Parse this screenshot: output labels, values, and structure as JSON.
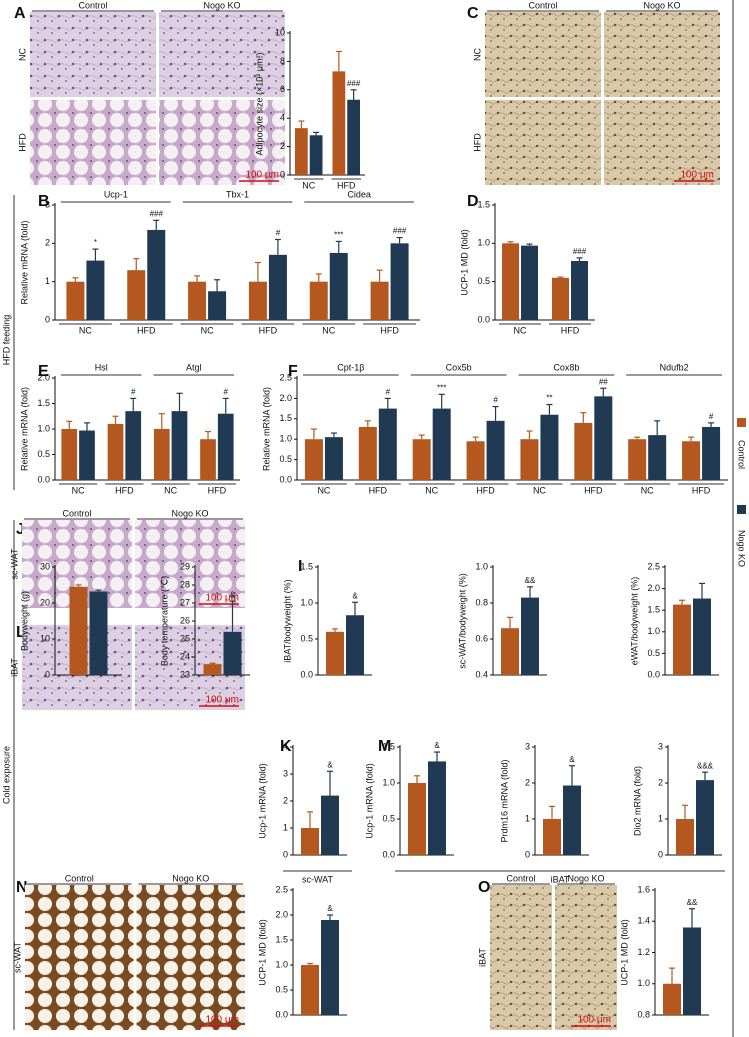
{
  "letters": [
    "A",
    "B",
    "C",
    "D",
    "E",
    "F",
    "G",
    "H",
    "I",
    "J",
    "K",
    "L",
    "M",
    "N",
    "O"
  ],
  "sections": [
    "HFD feeding",
    "Cold exposure"
  ],
  "images": [
    {
      "columns": [
        "Control",
        "Nogo KO"
      ],
      "rows": [
        "NC",
        "HFD"
      ],
      "scale": "100 μm"
    },
    {
      "columns": [
        "Control",
        "Nogo KO"
      ],
      "rows": [
        "NC",
        "HFD"
      ],
      "scale": "100 μm"
    },
    {
      "columns": [
        "Control",
        "Nogo KO"
      ],
      "rows": [
        "sc-WAT"
      ],
      "scale": "100 μm"
    },
    {
      "rows": [
        "iBAT"
      ],
      "scale": "100 μm"
    },
    {
      "columns": [
        "Control",
        "Nogo KO"
      ],
      "rows": [
        "sc-WAT"
      ],
      "scale": "100 μm"
    },
    {
      "columns": [
        "Control",
        "Nogo KO"
      ],
      "rows": [
        "iBAT"
      ],
      "scale": "100 μm"
    }
  ],
  "chart_data": [
    {
      "type": "bar",
      "ylabel": "Adipocyte size (×10² μm²)",
      "categories": [
        "NC",
        "HFD"
      ],
      "ylim": [
        0,
        10
      ],
      "yticks": [
        0,
        2,
        4,
        6,
        8,
        10
      ],
      "series": [
        {
          "name": "Control",
          "color": "#b5581f",
          "values": [
            3.3,
            7.3
          ],
          "errors": [
            0.5,
            1.4
          ]
        },
        {
          "name": "Nogo KO",
          "color": "#1f3a52",
          "values": [
            2.8,
            5.3
          ],
          "errors": [
            0.2,
            0.7
          ],
          "annotations": [
            null,
            "###"
          ]
        }
      ]
    },
    {
      "type": "bar",
      "ylabel": "Relative mRNA (fold)",
      "groups": [
        "Ucp-1",
        "Tbx-1",
        "Cidea"
      ],
      "categories": [
        "NC",
        "HFD",
        "NC",
        "HFD",
        "NC",
        "HFD"
      ],
      "ylim": [
        0,
        3
      ],
      "yticks": [
        0,
        1,
        2,
        3
      ],
      "series": [
        {
          "name": "Control",
          "color": "#b5581f",
          "values": [
            1.0,
            1.3,
            1.0,
            1.0,
            1.0,
            1.0
          ],
          "errors": [
            0.1,
            0.3,
            0.15,
            0.5,
            0.2,
            0.3
          ]
        },
        {
          "name": "Nogo KO",
          "color": "#1f3a52",
          "values": [
            1.55,
            2.35,
            0.75,
            1.7,
            1.75,
            2.0
          ],
          "errors": [
            0.3,
            0.25,
            0.3,
            0.4,
            0.3,
            0.15
          ],
          "annotations": [
            "*",
            "###",
            null,
            "#",
            "***",
            "###"
          ]
        }
      ]
    },
    {
      "type": "bar",
      "ylabel": "UCP-1 MD (fold)",
      "categories": [
        "NC",
        "HFD"
      ],
      "ylim": [
        0,
        1.5
      ],
      "yticks": [
        {
          "value": 0,
          "label": "0.0"
        },
        0.5,
        {
          "value": 1,
          "label": "1.0"
        },
        1.5
      ],
      "series": [
        {
          "name": "Control",
          "color": "#b5581f",
          "values": [
            1.0,
            0.55
          ],
          "errors": [
            0.02,
            0.01
          ]
        },
        {
          "name": "Nogo KO",
          "color": "#1f3a52",
          "values": [
            0.97,
            0.77
          ],
          "errors": [
            0.02,
            0.04
          ],
          "annotations": [
            null,
            "###"
          ]
        }
      ]
    },
    {
      "type": "bar",
      "ylabel": "Relative mRNA (fold)",
      "groups": [
        "Hsl",
        "Atgl"
      ],
      "categories": [
        "NC",
        "HFD",
        "NC",
        "HFD"
      ],
      "ylim": [
        0,
        2
      ],
      "yticks": [
        {
          "value": 0,
          "label": "0.0"
        },
        0.5,
        {
          "value": 1,
          "label": "1.0"
        },
        1.5,
        {
          "value": 2,
          "label": "2.0"
        }
      ],
      "series": [
        {
          "name": "Control",
          "color": "#b5581f",
          "values": [
            1.0,
            1.1,
            1.0,
            0.8
          ],
          "errors": [
            0.15,
            0.15,
            0.3,
            0.15
          ]
        },
        {
          "name": "Nogo KO",
          "color": "#1f3a52",
          "values": [
            0.97,
            1.35,
            1.35,
            1.3
          ],
          "errors": [
            0.15,
            0.25,
            0.35,
            0.3
          ],
          "annotations": [
            null,
            "#",
            null,
            "#"
          ]
        }
      ]
    },
    {
      "type": "bar",
      "ylabel": "Relative mRNA (fold)",
      "groups": [
        "Cpt-1β",
        "Cox5b",
        "Cox8b",
        "Ndufb2"
      ],
      "categories": [
        "NC",
        "HFD",
        "NC",
        "HFD",
        "NC",
        "HFD",
        "NC",
        "HFD"
      ],
      "ylim": [
        0,
        2.5
      ],
      "yticks": [
        {
          "value": 0,
          "label": "0.0"
        },
        0.5,
        {
          "value": 1,
          "label": "1.0"
        },
        1.5,
        {
          "value": 2,
          "label": "2.0"
        },
        2.5
      ],
      "series": [
        {
          "name": "Control",
          "color": "#b5581f",
          "values": [
            1.0,
            1.3,
            1.0,
            0.95,
            1.0,
            1.4,
            1.0,
            0.95
          ],
          "errors": [
            0.25,
            0.15,
            0.1,
            0.1,
            0.2,
            0.25,
            0.05,
            0.1
          ]
        },
        {
          "name": "Nogo KO",
          "color": "#1f3a52",
          "values": [
            1.05,
            1.75,
            1.75,
            1.45,
            1.6,
            2.05,
            1.1,
            1.3
          ],
          "errors": [
            0.1,
            0.25,
            0.35,
            0.35,
            0.25,
            0.2,
            0.35,
            0.1
          ],
          "annotations": [
            null,
            "#",
            "***",
            "#",
            "**",
            "##",
            null,
            "#"
          ]
        }
      ]
    },
    {
      "type": "bar",
      "ylabel": "Bodyweight (g)",
      "categories": [
        null
      ],
      "ylim": [
        0,
        30
      ],
      "yticks": [
        0,
        10,
        20,
        30
      ],
      "series": [
        {
          "name": "Control",
          "color": "#b5581f",
          "values": [
            24.5
          ],
          "errors": [
            0.5
          ]
        },
        {
          "name": "Nogo KO",
          "color": "#1f3a52",
          "values": [
            23.2
          ],
          "errors": [
            0.4
          ]
        }
      ]
    },
    {
      "type": "bar",
      "ylabel": "Body temperature (℃)",
      "categories": [
        null
      ],
      "ylim": [
        23,
        29
      ],
      "yticks": [
        23,
        24,
        25,
        26,
        27,
        28,
        29
      ],
      "series": [
        {
          "name": "Control",
          "color": "#b5581f",
          "values": [
            23.6
          ],
          "errors": [
            0.05
          ]
        },
        {
          "name": "Nogo KO",
          "color": "#1f3a52",
          "values": [
            25.4
          ],
          "errors": [
            1.7
          ],
          "annotations": [
            "&"
          ]
        }
      ]
    },
    {
      "type": "bar",
      "ylabel": "iBAT/bodyweight (%)",
      "categories": [
        null
      ],
      "ylim": [
        0,
        1.5
      ],
      "yticks": [
        {
          "value": 0,
          "label": "0.0"
        },
        0.5,
        {
          "value": 1,
          "label": "1.0"
        },
        1.5
      ],
      "series": [
        {
          "name": "Control",
          "color": "#b5581f",
          "values": [
            0.6
          ],
          "errors": [
            0.04
          ]
        },
        {
          "name": "Nogo KO",
          "color": "#1f3a52",
          "values": [
            0.83
          ],
          "errors": [
            0.18
          ],
          "annotations": [
            "&"
          ]
        }
      ]
    },
    {
      "type": "bar",
      "ylabel": "sc-WAT/bodyweight (%)",
      "categories": [
        null
      ],
      "ylim": [
        0.4,
        1
      ],
      "yticks": [
        0.4,
        0.6,
        0.8,
        {
          "value": 1,
          "label": "1.0"
        }
      ],
      "series": [
        {
          "name": "Control",
          "color": "#b5581f",
          "values": [
            0.66
          ],
          "errors": [
            0.06
          ]
        },
        {
          "name": "Nogo KO",
          "color": "#1f3a52",
          "values": [
            0.83
          ],
          "errors": [
            0.06
          ],
          "annotations": [
            "&&"
          ]
        }
      ]
    },
    {
      "type": "bar",
      "ylabel": "eWAT/bodyweight (%)",
      "categories": [
        null
      ],
      "ylim": [
        0,
        2.5
      ],
      "yticks": [
        {
          "value": 0,
          "label": "0.0"
        },
        0.5,
        {
          "value": 1,
          "label": "1.0"
        },
        1.5,
        {
          "value": 2,
          "label": "2.0"
        },
        2.5
      ],
      "series": [
        {
          "name": "Control",
          "color": "#b5581f",
          "values": [
            1.63
          ],
          "errors": [
            0.1
          ]
        },
        {
          "name": "Nogo KO",
          "color": "#1f3a52",
          "values": [
            1.77
          ],
          "errors": [
            0.35
          ]
        }
      ]
    },
    {
      "type": "bar",
      "ylabel": "Ucp-1 mRNA (fold)",
      "xlabel": "sc-WAT",
      "categories": [
        null
      ],
      "ylim": [
        0,
        4
      ],
      "yticks": [
        0,
        1,
        2,
        3,
        4
      ],
      "series": [
        {
          "name": "Control",
          "color": "#b5581f",
          "values": [
            1.0
          ],
          "errors": [
            0.6
          ]
        },
        {
          "name": "Nogo KO",
          "color": "#1f3a52",
          "values": [
            2.2
          ],
          "errors": [
            0.9
          ],
          "annotations": [
            "&"
          ]
        }
      ]
    },
    {
      "type": "bar",
      "ylabel": "Ucp-1 mRNA (fold)",
      "categories": [
        null
      ],
      "ylim": [
        0,
        1.5
      ],
      "yticks": [
        {
          "value": 0,
          "label": "0.0"
        },
        0.5,
        {
          "value": 1,
          "label": "1.0"
        },
        1.5
      ],
      "series": [
        {
          "name": "Control",
          "color": "#b5581f",
          "values": [
            1.0
          ],
          "errors": [
            0.1
          ]
        },
        {
          "name": "Nogo KO",
          "color": "#1f3a52",
          "values": [
            1.3
          ],
          "errors": [
            0.13
          ],
          "annotations": [
            "&"
          ]
        }
      ]
    },
    {
      "type": "bar",
      "ylabel": "Prdm16 mRNA (fold)",
      "xlabel": "iBAT",
      "categories": [
        null
      ],
      "ylim": [
        0,
        3
      ],
      "yticks": [
        0,
        1,
        2,
        3
      ],
      "series": [
        {
          "name": "Control",
          "color": "#b5581f",
          "values": [
            1.0
          ],
          "errors": [
            0.35
          ]
        },
        {
          "name": "Nogo KO",
          "color": "#1f3a52",
          "values": [
            1.93
          ],
          "errors": [
            0.55
          ],
          "annotations": [
            "&"
          ]
        }
      ]
    },
    {
      "type": "bar",
      "ylabel": "Dio2 mRNA (fold)",
      "categories": [
        null
      ],
      "ylim": [
        0,
        3
      ],
      "yticks": [
        0,
        1,
        2,
        3
      ],
      "series": [
        {
          "name": "Control",
          "color": "#b5581f",
          "values": [
            1.0
          ],
          "errors": [
            0.38
          ]
        },
        {
          "name": "Nogo KO",
          "color": "#1f3a52",
          "values": [
            2.08
          ],
          "errors": [
            0.22
          ],
          "annotations": [
            "&&&"
          ]
        }
      ]
    },
    {
      "type": "bar",
      "ylabel": "UCP-1 MD (fold)",
      "categories": [
        null
      ],
      "ylim": [
        0,
        2.5
      ],
      "yticks": [
        {
          "value": 0,
          "label": "0.0"
        },
        0.5,
        {
          "value": 1,
          "label": "1.0"
        },
        1.5,
        {
          "value": 2,
          "label": "2.0"
        },
        2.5
      ],
      "series": [
        {
          "name": "Control",
          "color": "#b5581f",
          "values": [
            1.0
          ],
          "errors": [
            0.03
          ]
        },
        {
          "name": "Nogo KO",
          "color": "#1f3a52",
          "values": [
            1.9
          ],
          "errors": [
            0.1
          ],
          "annotations": [
            "&"
          ]
        }
      ]
    },
    {
      "type": "bar",
      "ylabel": "UCP-1 MD (fold)",
      "categories": [
        null
      ],
      "ylim": [
        0.8,
        1.6
      ],
      "yticks": [
        0.8,
        {
          "value": 1,
          "label": "1.0"
        },
        1.2,
        1.4,
        1.6
      ],
      "series": [
        {
          "name": "Control",
          "color": "#b5581f",
          "values": [
            1.0
          ],
          "errors": [
            0.1
          ]
        },
        {
          "name": "Nogo KO",
          "color": "#1f3a52",
          "values": [
            1.36
          ],
          "errors": [
            0.12
          ],
          "annotations": [
            "&&"
          ]
        }
      ]
    }
  ]
}
